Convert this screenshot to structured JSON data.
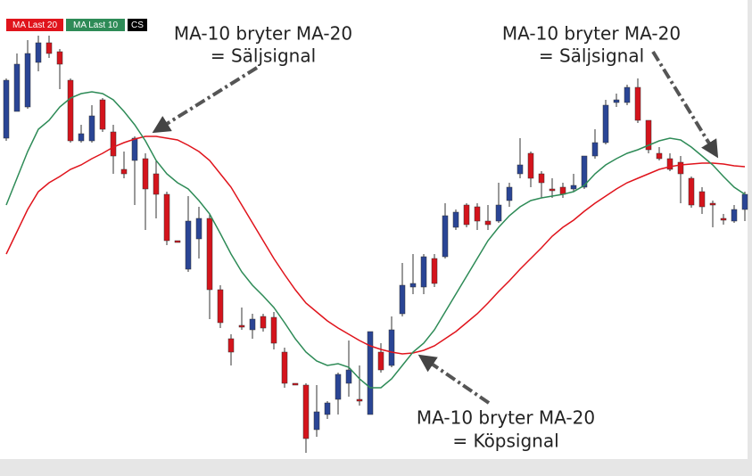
{
  "chart_data": {
    "type": "candlestick",
    "legend": [
      "MA  Last 20",
      "MA  Last 10",
      "CS"
    ],
    "up_color": "#2a4595",
    "down_color": "#d4141c",
    "ylim": [
      0,
      515
    ],
    "open": [
      360,
      390,
      395,
      445,
      467,
      457,
      425,
      357,
      357,
      403,
      367,
      325,
      335,
      337,
      320,
      297,
      245,
      213,
      247,
      270,
      190,
      135,
      150,
      145,
      160,
      159,
      120,
      85,
      83,
      33,
      50,
      67,
      85,
      67,
      50,
      120,
      105,
      163,
      193,
      193,
      225,
      227,
      260,
      285,
      283,
      267,
      267,
      290,
      320,
      343,
      320,
      303,
      305,
      303,
      305,
      340,
      355,
      400,
      400,
      417,
      380,
      343,
      337,
      333,
      315,
      300,
      287,
      270,
      267,
      280
    ],
    "high": [
      427,
      455,
      470,
      475,
      475,
      460,
      427,
      375,
      397,
      405,
      375,
      345,
      362,
      343,
      335,
      300,
      245,
      295,
      283,
      275,
      195,
      140,
      170,
      163,
      163,
      165,
      125,
      85,
      85,
      83,
      65,
      97,
      133,
      105,
      143,
      130,
      160,
      220,
      230,
      230,
      230,
      287,
      280,
      287,
      287,
      285,
      310,
      310,
      360,
      345,
      323,
      315,
      310,
      320,
      340,
      370,
      403,
      410,
      420,
      427,
      380,
      350,
      343,
      340,
      317,
      305,
      290,
      275,
      285,
      300
    ],
    "low": [
      357,
      390,
      393,
      435,
      450,
      415,
      355,
      355,
      355,
      367,
      320,
      315,
      285,
      257,
      270,
      240,
      243,
      210,
      225,
      157,
      147,
      105,
      145,
      135,
      143,
      123,
      80,
      83,
      7,
      25,
      45,
      50,
      70,
      60,
      50,
      97,
      103,
      160,
      185,
      185,
      193,
      225,
      257,
      260,
      257,
      257,
      265,
      283,
      315,
      305,
      293,
      293,
      293,
      300,
      303,
      337,
      353,
      395,
      397,
      377,
      343,
      335,
      323,
      287,
      282,
      275,
      260,
      263,
      265,
      267
    ],
    "close": [
      425,
      443,
      455,
      467,
      455,
      443,
      357,
      365,
      385,
      370,
      340,
      320,
      360,
      303,
      297,
      245,
      243,
      267,
      270,
      190,
      153,
      120,
      148,
      157,
      147,
      130,
      85,
      83,
      23,
      53,
      63,
      95,
      100,
      65,
      143,
      100,
      145,
      195,
      197,
      227,
      197,
      273,
      277,
      263,
      267,
      263,
      285,
      305,
      330,
      315,
      310,
      301,
      297,
      307,
      340,
      355,
      397,
      403,
      417,
      380,
      347,
      337,
      325,
      320,
      285,
      283,
      285,
      268,
      280,
      297
    ],
    "series": [
      {
        "name": "MA-20",
        "color": "#e0141c",
        "values": [
          230,
          255,
          280,
          300,
          310,
          317,
          325,
          330,
          337,
          343,
          350,
          355,
          359,
          362,
          362,
          360,
          358,
          352,
          345,
          335,
          320,
          305,
          285,
          265,
          245,
          225,
          207,
          190,
          175,
          165,
          155,
          147,
          140,
          133,
          127,
          123,
          120,
          118,
          119,
          122,
          127,
          135,
          143,
          153,
          163,
          175,
          188,
          200,
          213,
          225,
          237,
          250,
          260,
          268,
          278,
          287,
          295,
          303,
          310,
          315,
          320,
          325,
          328,
          330,
          331,
          332,
          332,
          331,
          329,
          328
        ]
      },
      {
        "name": "MA-10",
        "color": "#2e8b57",
        "values": [
          285,
          315,
          345,
          370,
          380,
          395,
          405,
          410,
          412,
          410,
          403,
          390,
          375,
          357,
          335,
          320,
          310,
          303,
          290,
          275,
          253,
          230,
          210,
          195,
          183,
          170,
          153,
          135,
          120,
          110,
          105,
          107,
          103,
          90,
          80,
          80,
          90,
          105,
          120,
          130,
          145,
          165,
          185,
          205,
          225,
          245,
          260,
          273,
          283,
          290,
          293,
          295,
          297,
          300,
          307,
          320,
          330,
          337,
          343,
          347,
          352,
          357,
          360,
          358,
          350,
          340,
          330,
          317,
          305,
          297
        ]
      }
    ],
    "annotations": [
      {
        "lines": [
          "MA-10 bryter MA-20",
          "= Säljsignal"
        ]
      },
      {
        "lines": [
          "MA-10 bryter MA-20",
          "= Säljsignal"
        ]
      },
      {
        "lines": [
          "MA-10 bryter MA-20",
          "= Köpsignal"
        ]
      }
    ]
  }
}
